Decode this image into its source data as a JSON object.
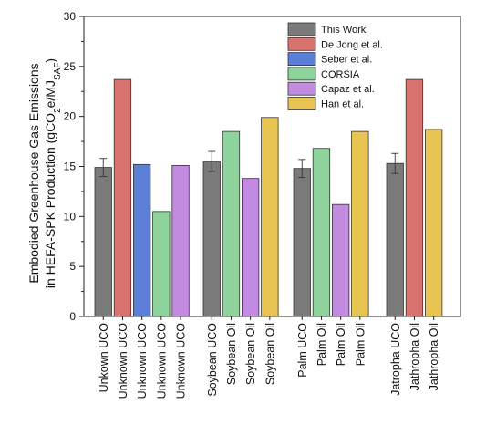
{
  "chart_data": {
    "type": "bar",
    "ylabel_line1": "Embodied Greenhouse Gas Emissions",
    "ylabel_line2_parts": [
      "in HEFA-SPK Production (gCO",
      "2",
      "e/MJ",
      "SAF",
      ")"
    ],
    "ylim": [
      0,
      30
    ],
    "yticks": [
      "0",
      "5",
      "10",
      "15",
      "20",
      "25",
      "30"
    ],
    "grid": false,
    "legend_position": "top-right",
    "series": [
      {
        "name": "This Work",
        "color": "#7a7a7a"
      },
      {
        "name": "De Jong et al.",
        "color": "#d9736f"
      },
      {
        "name": "Seber et al.",
        "color": "#5b7fd6"
      },
      {
        "name": "CORSIA",
        "color": "#8fd49c"
      },
      {
        "name": "Capaz et al.",
        "color": "#c28ae0"
      },
      {
        "name": "Han et al.",
        "color": "#e8c453"
      }
    ],
    "bars": [
      {
        "category": "Unkown UCO",
        "series": 0,
        "value": 14.9,
        "error": 0.9,
        "group": 0
      },
      {
        "category": "Unknown UCO",
        "series": 1,
        "value": 23.7,
        "group": 0
      },
      {
        "category": "Unknown UCO",
        "series": 2,
        "value": 15.2,
        "group": 0
      },
      {
        "category": "Unknown UCO",
        "series": 3,
        "value": 10.5,
        "group": 0
      },
      {
        "category": "Unknown UCO",
        "series": 4,
        "value": 15.1,
        "group": 0
      },
      {
        "category": "Soybean UCO",
        "series": 0,
        "value": 15.5,
        "error": 1.0,
        "group": 1
      },
      {
        "category": "Soybean Oil",
        "series": 3,
        "value": 18.5,
        "group": 1
      },
      {
        "category": "Soybean Oil",
        "series": 4,
        "value": 13.8,
        "group": 1
      },
      {
        "category": "Soybean Oil",
        "series": 5,
        "value": 19.9,
        "group": 1
      },
      {
        "category": "Palm UCO",
        "series": 0,
        "value": 14.8,
        "error": 0.9,
        "group": 2
      },
      {
        "category": "Palm Oil",
        "series": 3,
        "value": 16.8,
        "group": 2
      },
      {
        "category": "Palm Oil",
        "series": 4,
        "value": 11.2,
        "group": 2
      },
      {
        "category": "Palm Oil",
        "series": 5,
        "value": 18.5,
        "group": 2
      },
      {
        "category": "Jatropha UCO",
        "series": 0,
        "value": 15.3,
        "error": 1.0,
        "group": 3
      },
      {
        "category": "Jathropha Oil",
        "series": 1,
        "value": 23.7,
        "group": 3
      },
      {
        "category": "Jathropha Oil",
        "series": 5,
        "value": 18.7,
        "group": 3
      }
    ]
  }
}
